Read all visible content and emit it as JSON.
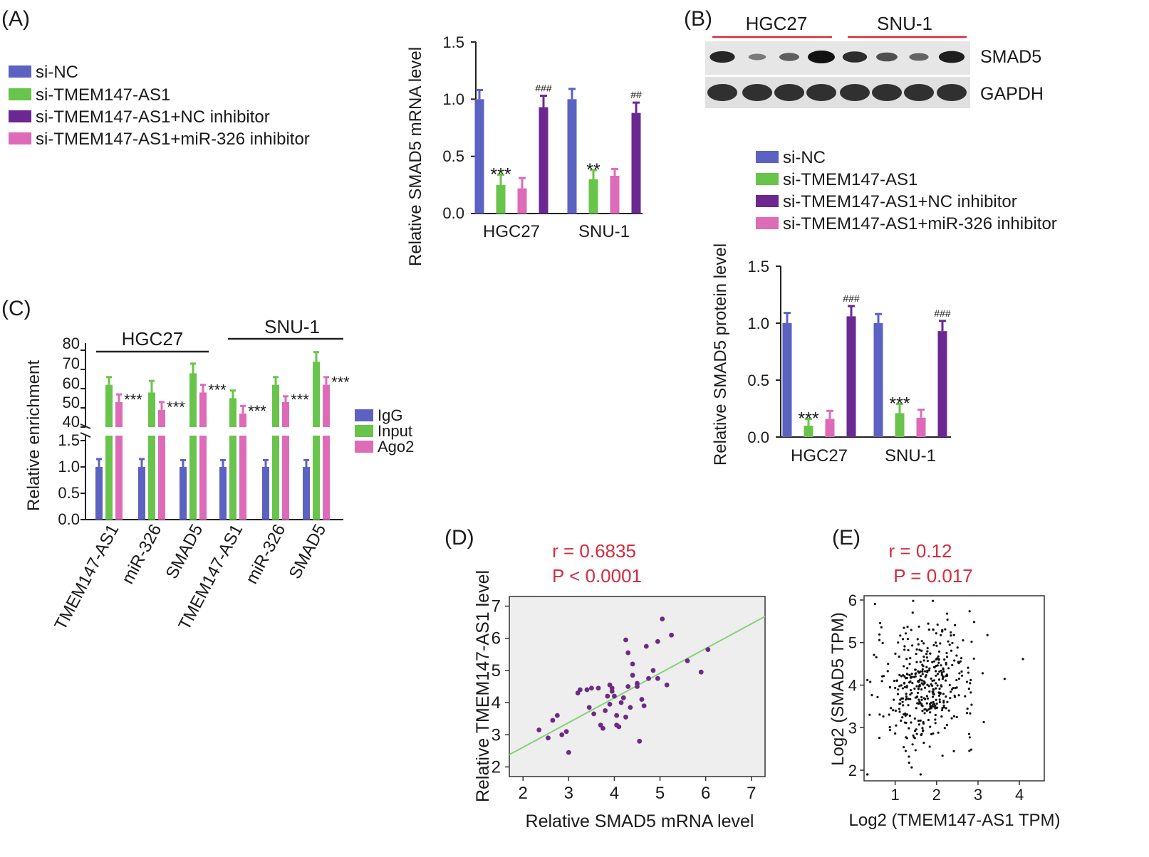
{
  "colors": {
    "blue": "#5b62c2",
    "green": "#68c44a",
    "purple": "#6a2890",
    "pink": "#de6bb8",
    "red": "#d62b3d",
    "scatter_purple": "#6c2a84",
    "line_green": "#88d07a"
  },
  "panel_labels": {
    "a": "(A)",
    "b": "(B)",
    "c": "(C)",
    "d": "(D)",
    "e": "(E)"
  },
  "legend_ab": [
    {
      "label": "si-NC",
      "color": "#5b62c2"
    },
    {
      "label": "si-TMEM147-AS1",
      "color": "#68c44a"
    },
    {
      "label": "si-TMEM147-AS1+NC inhibitor",
      "color": "#6a2890"
    },
    {
      "label": "si-TMEM147-AS1+miR-326 inhibitor",
      "color": "#de6bb8"
    }
  ],
  "legend_c": [
    {
      "label": "IgG",
      "color": "#5b62c2"
    },
    {
      "label": "Input",
      "color": "#68c44a"
    },
    {
      "label": "Ago2",
      "color": "#de6bb8"
    }
  ],
  "western": {
    "groups": [
      "HGC27",
      "SNU-1"
    ],
    "rows": [
      "SMAD5",
      "GAPDH"
    ],
    "smad5_intensity": [
      0.85,
      0.25,
      0.45,
      1.0,
      0.8,
      0.55,
      0.4,
      0.9
    ],
    "gapdh_intensity": [
      1,
      1,
      1,
      1,
      1,
      1,
      1,
      1
    ]
  },
  "chart_data": [
    {
      "id": "A",
      "type": "bar",
      "title": "",
      "ylabel": "Relative SMAD5 mRNA level",
      "xlabel": "",
      "ylim": [
        0,
        1.5
      ],
      "yticks": [
        "0.0",
        "0.5",
        "1.0",
        "1.5"
      ],
      "categories": [
        "HGC27",
        "SNU-1"
      ],
      "series": [
        {
          "name": "si-NC",
          "values": [
            1.0,
            1.0
          ],
          "errors": [
            0.08,
            0.09
          ]
        },
        {
          "name": "si-TMEM147-AS1",
          "values": [
            0.25,
            0.3
          ],
          "errors": [
            0.09,
            0.08
          ]
        },
        {
          "name": "si-TMEM147-AS1+miR-326 inhibitor",
          "values": [
            0.22,
            0.33
          ],
          "errors": [
            0.09,
            0.06
          ]
        },
        {
          "name": "si-TMEM147-AS1+NC inhibitor",
          "values": [
            0.93,
            0.88
          ],
          "errors": [
            0.1,
            0.09
          ]
        }
      ],
      "annotations": [
        {
          "category": "HGC27",
          "series": 1,
          "text": "***"
        },
        {
          "category": "HGC27",
          "series": 3,
          "text": "###"
        },
        {
          "category": "SNU-1",
          "series": 1,
          "text": "**"
        },
        {
          "category": "SNU-1",
          "series": 3,
          "text": "##"
        }
      ]
    },
    {
      "id": "B",
      "type": "bar",
      "title": "",
      "ylabel": "Relative SMAD5 protein level",
      "xlabel": "",
      "ylim": [
        0,
        1.5
      ],
      "yticks": [
        "0.0",
        "0.5",
        "1.0",
        "1.5"
      ],
      "categories": [
        "HGC27",
        "SNU-1"
      ],
      "series": [
        {
          "name": "si-NC",
          "values": [
            1.0,
            1.0
          ],
          "errors": [
            0.09,
            0.08
          ]
        },
        {
          "name": "si-TMEM147-AS1",
          "values": [
            0.1,
            0.21
          ],
          "errors": [
            0.06,
            0.08
          ]
        },
        {
          "name": "si-TMEM147-AS1+miR-326 inhibitor",
          "values": [
            0.16,
            0.17
          ],
          "errors": [
            0.07,
            0.07
          ]
        },
        {
          "name": "si-TMEM147-AS1+NC inhibitor",
          "values": [
            1.06,
            0.93
          ],
          "errors": [
            0.09,
            0.09
          ]
        }
      ],
      "annotations": [
        {
          "category": "HGC27",
          "series": 1,
          "text": "***"
        },
        {
          "category": "HGC27",
          "series": 3,
          "text": "###"
        },
        {
          "category": "SNU-1",
          "series": 1,
          "text": "***"
        },
        {
          "category": "SNU-1",
          "series": 3,
          "text": "###"
        }
      ]
    },
    {
      "id": "C",
      "type": "bar",
      "title": "",
      "ylabel": "Relative enrichment",
      "xlabel": "",
      "axis_break": true,
      "lower_ylim": [
        0,
        1.5
      ],
      "lower_yticks": [
        "0.0",
        "0.5",
        "1.0",
        "1.5"
      ],
      "upper_ylim": [
        40,
        80
      ],
      "upper_yticks": [
        "40",
        "50",
        "60",
        "70",
        "80"
      ],
      "groups": [
        {
          "label": "HGC27",
          "categories": [
            "TMEM147-AS1",
            "miR-326",
            "SMAD5"
          ]
        },
        {
          "label": "SNU-1",
          "categories": [
            "TMEM147-AS1",
            "miR-326",
            "SMAD5"
          ]
        }
      ],
      "categories": [
        "TMEM147-AS1",
        "miR-326",
        "SMAD5",
        "TMEM147-AS1",
        "miR-326",
        "SMAD5"
      ],
      "series": [
        {
          "name": "IgG",
          "values": [
            1.0,
            1.0,
            1.0,
            1.0,
            1.0,
            1.0
          ],
          "errors": [
            0.15,
            0.15,
            0.13,
            0.13,
            0.13,
            0.13
          ]
        },
        {
          "name": "Input",
          "values": [
            62,
            58,
            68,
            55,
            62,
            74
          ],
          "errors": [
            4,
            6,
            5,
            4,
            4,
            5
          ]
        },
        {
          "name": "Ago2",
          "values": [
            53,
            49,
            58,
            47,
            53,
            62
          ],
          "errors": [
            4,
            4,
            4,
            4,
            3,
            4
          ]
        }
      ],
      "annotations": [
        "***",
        "***",
        "***",
        "***",
        "***",
        "***"
      ]
    },
    {
      "id": "D",
      "type": "scatter",
      "title": "",
      "stats": {
        "r": "r = 0.6835",
        "p": "P < 0.0001"
      },
      "xlabel": "Relative SMAD5 mRNA level",
      "ylabel": "Relative TMEM147-AS1 level",
      "xlim": [
        1.7,
        7.3
      ],
      "ylim": [
        1.7,
        7.3
      ],
      "xticks": [
        "2",
        "3",
        "4",
        "5",
        "6",
        "7"
      ],
      "yticks": [
        "2",
        "3",
        "4",
        "5",
        "6",
        "7"
      ],
      "fit_line": {
        "x1": 1.7,
        "y1": 2.38,
        "x2": 7.3,
        "y2": 6.68
      },
      "points": [
        [
          2.35,
          3.15
        ],
        [
          2.55,
          2.9
        ],
        [
          2.75,
          3.6
        ],
        [
          2.65,
          3.45
        ],
        [
          2.85,
          3.0
        ],
        [
          2.95,
          3.1
        ],
        [
          3.0,
          2.45
        ],
        [
          3.2,
          4.3
        ],
        [
          3.25,
          4.4
        ],
        [
          3.4,
          4.4
        ],
        [
          3.5,
          4.45
        ],
        [
          3.45,
          3.85
        ],
        [
          3.55,
          3.65
        ],
        [
          3.65,
          4.45
        ],
        [
          3.7,
          3.3
        ],
        [
          3.75,
          3.2
        ],
        [
          3.8,
          3.75
        ],
        [
          3.85,
          4.2
        ],
        [
          3.9,
          3.95
        ],
        [
          3.9,
          4.55
        ],
        [
          3.95,
          4.45
        ],
        [
          4.0,
          4.2
        ],
        [
          4.05,
          3.6
        ],
        [
          4.05,
          3.3
        ],
        [
          4.1,
          3.25
        ],
        [
          4.15,
          4.0
        ],
        [
          4.2,
          4.15
        ],
        [
          4.25,
          3.55
        ],
        [
          4.3,
          4.5
        ],
        [
          4.35,
          3.85
        ],
        [
          4.3,
          5.55
        ],
        [
          4.4,
          5.2
        ],
        [
          4.4,
          4.85
        ],
        [
          4.5,
          4.6
        ],
        [
          4.55,
          2.8
        ],
        [
          4.6,
          4.1
        ],
        [
          4.65,
          3.9
        ],
        [
          4.7,
          5.75
        ],
        [
          4.5,
          4.5
        ],
        [
          4.75,
          4.75
        ],
        [
          4.85,
          5.0
        ],
        [
          4.95,
          4.75
        ],
        [
          4.95,
          5.9
        ],
        [
          5.05,
          6.6
        ],
        [
          5.15,
          4.55
        ],
        [
          5.25,
          6.1
        ],
        [
          5.6,
          5.3
        ],
        [
          5.9,
          4.95
        ],
        [
          6.05,
          5.65
        ],
        [
          4.25,
          5.95
        ],
        [
          3.95,
          4.35
        ]
      ]
    },
    {
      "id": "E",
      "type": "scatter",
      "title": "",
      "stats": {
        "r": "r = 0.12",
        "p": "P = 0.017"
      },
      "xlabel": "Log2 (TMEM147-AS1 TPM)",
      "ylabel": "Log2 (SMAD5 TPM)",
      "xlim": [
        0.25,
        4.6
      ],
      "ylim": [
        1.75,
        6.1
      ],
      "xticks": [
        "1",
        "2",
        "3",
        "4"
      ],
      "yticks": [
        "2",
        "3",
        "4",
        "5",
        "6"
      ],
      "point_count": 420,
      "point_distribution": {
        "x_mean": 1.75,
        "x_sd": 0.6,
        "y_mean": 4.0,
        "y_sd": 0.72,
        "r": 0.12,
        "seed": 7
      }
    }
  ]
}
